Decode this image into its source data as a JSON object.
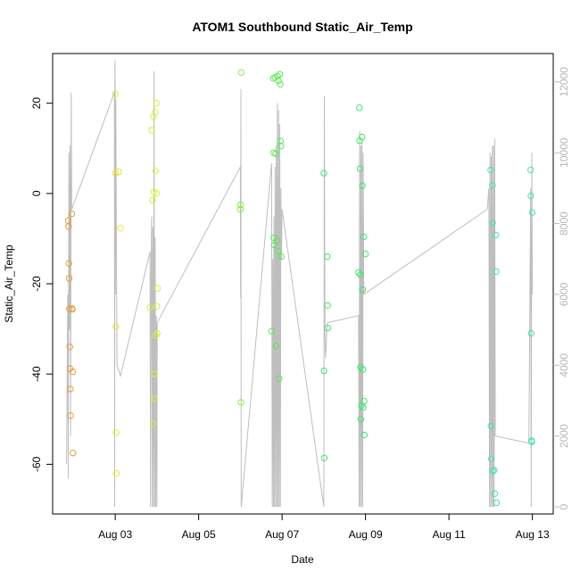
{
  "chart_data": {
    "type": "scatter",
    "title": "ATOM1 Southbound Static_Air_Temp",
    "xlabel": "Date",
    "ylabel": "Static_Air_Temp",
    "x_type": "date",
    "xlim": [
      "2023-08-01T12:00",
      "2023-08-13T12:00"
    ],
    "ylim": [
      -71,
      31
    ],
    "yticks": [
      -60,
      -40,
      -20,
      0,
      20
    ],
    "xticks": [
      "Aug 03",
      "Aug 05",
      "Aug 07",
      "Aug 09",
      "Aug 11",
      "Aug 13"
    ],
    "secondary_axis": {
      "side": "right",
      "ylim": [
        -200,
        12800
      ],
      "ticks": [
        0,
        2000,
        4000,
        6000,
        8000,
        10000,
        12000
      ],
      "color": "#bebebe"
    },
    "grid": false,
    "series": [
      {
        "type": "scatter",
        "color_by_date": true,
        "colors": {
          "Aug 01": "#e69f3c",
          "Aug 03": "#e6e639",
          "Aug 03b": "#d6f03a",
          "Aug 06": "#8fec3a",
          "Aug 07": "#5ee85c",
          "Aug 09": "#3fe86a",
          "Aug 12": "#40e8a8"
        },
        "points": [
          [
            "2023-08-01T21:00",
            -6
          ],
          [
            "2023-08-01T21:10",
            -7.3
          ],
          [
            "2023-08-01T21:20",
            -15.5
          ],
          [
            "2023-08-01T21:30",
            -18.8
          ],
          [
            "2023-08-01T21:40",
            -25.6
          ],
          [
            "2023-08-01T21:50",
            -34
          ],
          [
            "2023-08-01T22:00",
            -38.8
          ],
          [
            "2023-08-01T22:10",
            -43.3
          ],
          [
            "2023-08-01T22:20",
            -49.2
          ],
          [
            "2023-08-01T23:00",
            -4.5
          ],
          [
            "2023-08-01T23:10",
            -25.5
          ],
          [
            "2023-08-01T23:20",
            -25.7
          ],
          [
            "2023-08-01T23:30",
            -39.5
          ],
          [
            "2023-08-01T23:40",
            -57.5
          ],
          [
            "2023-08-03T00:00",
            22
          ],
          [
            "2023-08-03T00:10",
            4.5
          ],
          [
            "2023-08-03T00:20",
            -29.5
          ],
          [
            "2023-08-03T00:30",
            -53
          ],
          [
            "2023-08-03T00:40",
            -62
          ],
          [
            "2023-08-03T02:00",
            4.8
          ],
          [
            "2023-08-03T03:00",
            -7.7
          ],
          [
            "2023-08-03T20:00",
            -25.3
          ],
          [
            "2023-08-03T21:00",
            14
          ],
          [
            "2023-08-03T21:30",
            -1.5
          ],
          [
            "2023-08-03T21:40",
            -51
          ],
          [
            "2023-08-03T22:00",
            17
          ],
          [
            "2023-08-03T22:20",
            0.3
          ],
          [
            "2023-08-03T22:30",
            -40
          ],
          [
            "2023-08-03T22:40",
            -45.5
          ],
          [
            "2023-08-03T23:00",
            18
          ],
          [
            "2023-08-03T23:10",
            5
          ],
          [
            "2023-08-03T23:20",
            -31.5
          ],
          [
            "2023-08-03T23:40",
            20
          ],
          [
            "2023-08-03T23:50",
            0
          ],
          [
            "2023-08-04T00:00",
            -25
          ],
          [
            "2023-08-04T00:10",
            -31
          ],
          [
            "2023-08-04T00:20",
            -21
          ],
          [
            "2023-08-06T00:00",
            -3.5
          ],
          [
            "2023-08-06T00:10",
            -2.5
          ],
          [
            "2023-08-06T00:20",
            -46.3
          ],
          [
            "2023-08-06T00:30",
            26.8
          ],
          [
            "2023-08-06T18:00",
            -30.5
          ],
          [
            "2023-08-06T19:00",
            25.5
          ],
          [
            "2023-08-06T19:10",
            9
          ],
          [
            "2023-08-06T19:20",
            -9.8
          ],
          [
            "2023-08-06T19:30",
            -11.4
          ],
          [
            "2023-08-06T20:00",
            25.7
          ],
          [
            "2023-08-06T20:20",
            8.8
          ],
          [
            "2023-08-06T20:40",
            -33.8
          ],
          [
            "2023-08-06T21:00",
            -10.5
          ],
          [
            "2023-08-06T21:20",
            26
          ],
          [
            "2023-08-06T21:40",
            -12.8
          ],
          [
            "2023-08-06T22:00",
            25
          ],
          [
            "2023-08-06T22:20",
            -41
          ],
          [
            "2023-08-06T22:40",
            26.4
          ],
          [
            "2023-08-06T23:00",
            24.2
          ],
          [
            "2023-08-06T23:10",
            11.6
          ],
          [
            "2023-08-06T23:20",
            10.5
          ],
          [
            "2023-08-06T23:30",
            -14
          ],
          [
            "2023-08-08T00:00",
            4.5
          ],
          [
            "2023-08-08T00:10",
            -39.3
          ],
          [
            "2023-08-08T00:20",
            -58.6
          ],
          [
            "2023-08-08T02:00",
            -14
          ],
          [
            "2023-08-08T02:10",
            -24.8
          ],
          [
            "2023-08-08T02:20",
            -29.8
          ],
          [
            "2023-08-08T20:00",
            -17.5
          ],
          [
            "2023-08-08T20:30",
            19
          ],
          [
            "2023-08-08T20:40",
            11.7
          ],
          [
            "2023-08-08T20:50",
            5.5
          ],
          [
            "2023-08-08T21:00",
            -18
          ],
          [
            "2023-08-08T21:10",
            -38.5
          ],
          [
            "2023-08-08T21:20",
            -50
          ],
          [
            "2023-08-08T21:40",
            -47
          ],
          [
            "2023-08-08T22:00",
            12.5
          ],
          [
            "2023-08-08T22:10",
            1.7
          ],
          [
            "2023-08-08T22:20",
            -21.3
          ],
          [
            "2023-08-08T22:30",
            -39
          ],
          [
            "2023-08-08T22:40",
            -47.4
          ],
          [
            "2023-08-08T23:00",
            -9.6
          ],
          [
            "2023-08-08T23:10",
            -46
          ],
          [
            "2023-08-08T23:20",
            -53.5
          ],
          [
            "2023-08-09T00:00",
            -13.4
          ],
          [
            "2023-08-12T00:00",
            5.2
          ],
          [
            "2023-08-12T00:10",
            -51.5
          ],
          [
            "2023-08-12T00:20",
            -58.8
          ],
          [
            "2023-08-12T01:00",
            1.8
          ],
          [
            "2023-08-12T01:10",
            -6.5
          ],
          [
            "2023-08-12T01:20",
            -61.5
          ],
          [
            "2023-08-12T02:00",
            -61.3
          ],
          [
            "2023-08-12T02:20",
            -66.5
          ],
          [
            "2023-08-12T03:00",
            -9.2
          ],
          [
            "2023-08-12T03:10",
            -17.3
          ],
          [
            "2023-08-12T03:20",
            -68.5
          ],
          [
            "2023-08-12T23:00",
            5.2
          ],
          [
            "2023-08-12T23:10",
            -0.5
          ],
          [
            "2023-08-12T23:20",
            -31
          ],
          [
            "2023-08-12T23:30",
            -54.8
          ],
          [
            "2023-08-12T23:40",
            -55
          ],
          [
            "2023-08-13T00:00",
            -4.2
          ]
        ]
      },
      {
        "type": "line",
        "axis": "right",
        "color": "#bebebe",
        "points": [
          [
            "2023-08-01T20:00",
            1200
          ],
          [
            "2023-08-01T20:40",
            6000
          ],
          [
            "2023-08-01T21:00",
            800
          ],
          [
            "2023-08-01T21:20",
            10000
          ],
          [
            "2023-08-01T21:40",
            5000
          ],
          [
            "2023-08-01T22:00",
            10200
          ],
          [
            "2023-08-01T22:20",
            2000
          ],
          [
            "2023-08-01T22:40",
            11700
          ],
          [
            "2023-08-01T23:00",
            8400
          ],
          [
            "2023-08-02T23:30",
            11700
          ],
          [
            "2023-08-02T23:40",
            0
          ],
          [
            "2023-08-02T23:50",
            12600
          ],
          [
            "2023-08-03T00:00",
            11900
          ],
          [
            "2023-08-03T00:10",
            6000
          ],
          [
            "2023-08-03T00:20",
            11500
          ],
          [
            "2023-08-03T01:00",
            4000
          ],
          [
            "2023-08-03T03:00",
            3700
          ],
          [
            "2023-08-03T20:00",
            7200
          ],
          [
            "2023-08-03T20:20",
            0
          ],
          [
            "2023-08-03T20:40",
            7200
          ],
          [
            "2023-08-03T21:00",
            8200
          ],
          [
            "2023-08-03T21:20",
            0
          ],
          [
            "2023-08-03T21:40",
            7900
          ],
          [
            "2023-08-03T22:00",
            0
          ],
          [
            "2023-08-03T22:20",
            12300
          ],
          [
            "2023-08-03T22:40",
            0
          ],
          [
            "2023-08-03T23:00",
            7600
          ],
          [
            "2023-08-03T23:20",
            0
          ],
          [
            "2023-08-03T23:40",
            5400
          ],
          [
            "2023-08-04T00:00",
            0
          ],
          [
            "2023-08-04T00:10",
            5200
          ],
          [
            "2023-08-06T00:00",
            9600
          ],
          [
            "2023-08-06T00:10",
            5900
          ],
          [
            "2023-08-06T00:20",
            11800
          ],
          [
            "2023-08-06T00:30",
            0
          ],
          [
            "2023-08-06T18:00",
            9700
          ],
          [
            "2023-08-06T18:20",
            0
          ],
          [
            "2023-08-06T18:40",
            7000
          ],
          [
            "2023-08-06T19:00",
            0
          ],
          [
            "2023-08-06T19:20",
            8200
          ],
          [
            "2023-08-06T19:40",
            0
          ],
          [
            "2023-08-06T20:00",
            9600
          ],
          [
            "2023-08-06T20:20",
            0
          ],
          [
            "2023-08-06T20:40",
            10200
          ],
          [
            "2023-08-06T21:00",
            0
          ],
          [
            "2023-08-06T21:20",
            11400
          ],
          [
            "2023-08-06T21:40",
            0
          ],
          [
            "2023-08-06T22:00",
            11200
          ],
          [
            "2023-08-06T22:20",
            0
          ],
          [
            "2023-08-06T22:40",
            10800
          ],
          [
            "2023-08-06T23:00",
            0
          ],
          [
            "2023-08-06T23:20",
            9000
          ],
          [
            "2023-08-06T23:40",
            7000
          ],
          [
            "2023-08-07T00:00",
            8400
          ],
          [
            "2023-08-08T00:00",
            0
          ],
          [
            "2023-08-08T00:20",
            11600
          ],
          [
            "2023-08-08T00:40",
            4800
          ],
          [
            "2023-08-08T01:00",
            4200
          ],
          [
            "2023-08-08T02:00",
            5200
          ],
          [
            "2023-08-08T20:00",
            5400
          ],
          [
            "2023-08-08T20:20",
            0
          ],
          [
            "2023-08-08T20:40",
            10600
          ],
          [
            "2023-08-08T21:00",
            0
          ],
          [
            "2023-08-08T21:20",
            10200
          ],
          [
            "2023-08-08T21:40",
            0
          ],
          [
            "2023-08-08T22:00",
            10300
          ],
          [
            "2023-08-08T22:20",
            0
          ],
          [
            "2023-08-08T22:40",
            10000
          ],
          [
            "2023-08-08T23:00",
            6000
          ],
          [
            "2023-08-11T22:00",
            8400
          ],
          [
            "2023-08-11T23:00",
            9000
          ],
          [
            "2023-08-11T23:20",
            0
          ],
          [
            "2023-08-11T23:40",
            10000
          ],
          [
            "2023-08-12T00:00",
            0
          ],
          [
            "2023-08-12T00:20",
            9900
          ],
          [
            "2023-08-12T00:40",
            0
          ],
          [
            "2023-08-12T01:00",
            10200
          ],
          [
            "2023-08-12T01:20",
            0
          ],
          [
            "2023-08-12T01:40",
            10200
          ],
          [
            "2023-08-12T02:00",
            0
          ],
          [
            "2023-08-12T02:20",
            10400
          ],
          [
            "2023-08-12T02:40",
            2000
          ],
          [
            "2023-08-12T22:00",
            1800
          ],
          [
            "2023-08-12T23:00",
            9000
          ],
          [
            "2023-08-12T23:20",
            0
          ],
          [
            "2023-08-12T23:40",
            10000
          ],
          [
            "2023-08-13T00:00",
            6000
          ]
        ]
      }
    ]
  }
}
